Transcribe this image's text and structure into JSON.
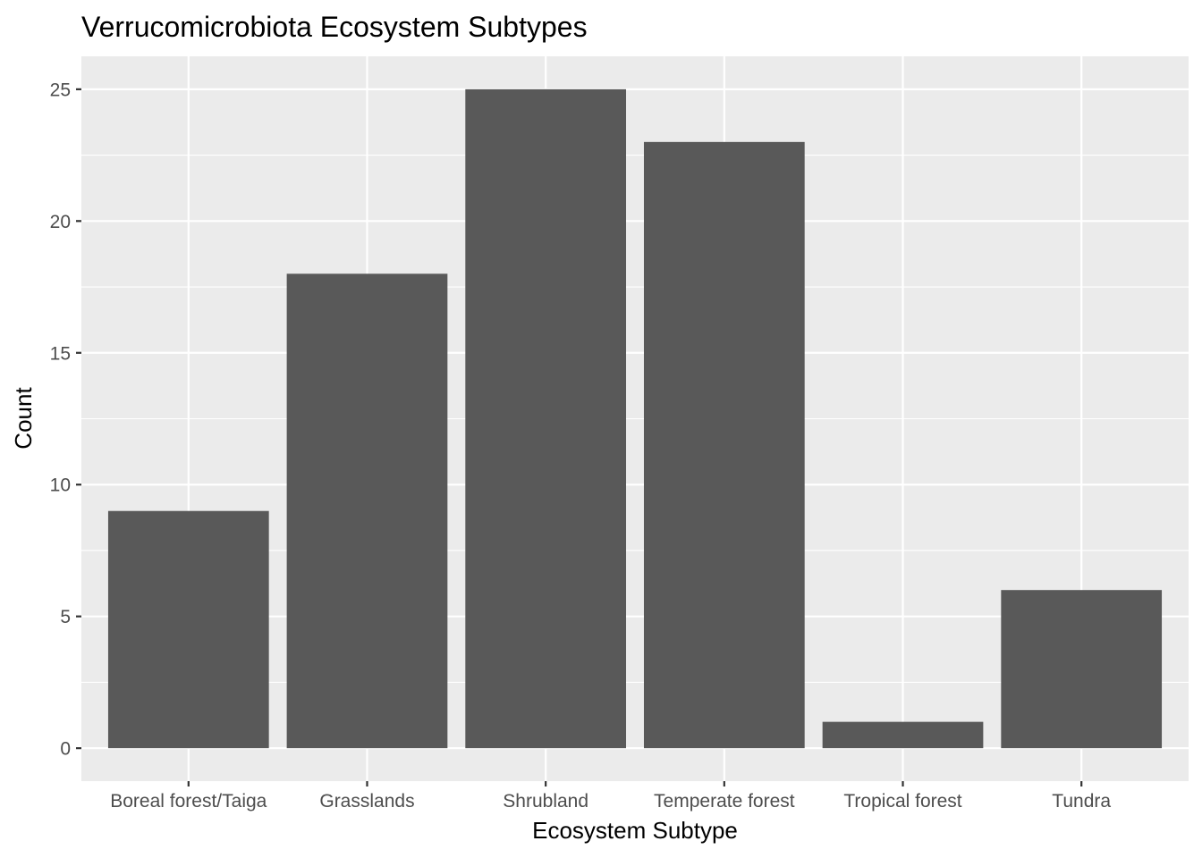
{
  "chart_data": {
    "type": "bar",
    "title": "Verrucomicrobiota Ecosystem Subtypes",
    "xlabel": "Ecosystem Subtype",
    "ylabel": "Count",
    "categories": [
      "Boreal forest/Taiga",
      "Grasslands",
      "Shrubland",
      "Temperate forest",
      "Tropical forest",
      "Tundra"
    ],
    "values": [
      9,
      18,
      25,
      23,
      1,
      6
    ],
    "ylim": [
      -1.25,
      26.25
    ],
    "yticks": [
      0,
      5,
      10,
      15,
      20,
      25
    ],
    "grid": true,
    "colors": {
      "bar": "#595959",
      "panel": "#ebebeb",
      "grid": "#ffffff",
      "tick_text": "#4d4d4d",
      "tick_mark": "#333333"
    }
  }
}
